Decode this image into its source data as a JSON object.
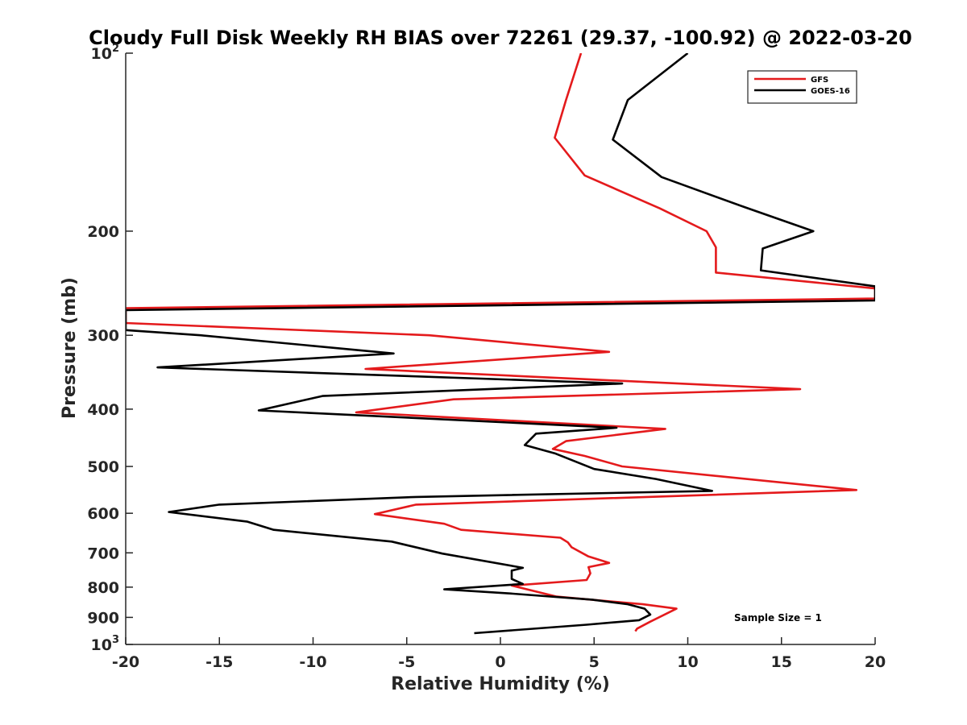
{
  "chart_data": {
    "type": "line",
    "title": "Cloudy Full Disk Weekly RH BIAS over 72261 (29.37, -100.92) @ 2022-03-20",
    "xlabel": "Relative Humidity (%)",
    "ylabel": "Pressure (mb)",
    "xlim": [
      -20,
      20
    ],
    "ylim": [
      100,
      1000
    ],
    "yscale": "log",
    "y_reversed": true,
    "grid": false,
    "legend_position": "top-right",
    "x_ticks": [
      "-20",
      "-15",
      "-10",
      "-5",
      "0",
      "5",
      "10",
      "15",
      "20"
    ],
    "y_ticks": [
      {
        "value": 100,
        "label": "10",
        "exp": "2"
      },
      {
        "value": 200,
        "label": "200"
      },
      {
        "value": 300,
        "label": "300"
      },
      {
        "value": 400,
        "label": "400"
      },
      {
        "value": 500,
        "label": "500"
      },
      {
        "value": 600,
        "label": "600"
      },
      {
        "value": 700,
        "label": "700"
      },
      {
        "value": 800,
        "label": "800"
      },
      {
        "value": 900,
        "label": "900"
      },
      {
        "value": 1000,
        "label": "10",
        "exp": "3"
      }
    ],
    "annotation": "Sample Size = 1",
    "series": [
      {
        "name": "GFS",
        "color": "#e41a1c",
        "points": [
          [
            4.3,
            100
          ],
          [
            3.5,
            120
          ],
          [
            2.9,
            139
          ],
          [
            4.5,
            161
          ],
          [
            8.5,
            183
          ],
          [
            11.0,
            200
          ],
          [
            11.5,
            213
          ],
          [
            11.5,
            235
          ],
          [
            20.0,
            250
          ],
          [
            20.0,
            260
          ],
          [
            -20.0,
            270
          ],
          [
            -20.0,
            286
          ],
          [
            -3.8,
            300
          ],
          [
            5.8,
            320
          ],
          [
            -7.2,
            342
          ],
          [
            16.0,
            370
          ],
          [
            -2.5,
            385
          ],
          [
            -7.7,
            405
          ],
          [
            8.8,
            432
          ],
          [
            3.5,
            453
          ],
          [
            2.8,
            467
          ],
          [
            4.5,
            480
          ],
          [
            6.5,
            500
          ],
          [
            19.0,
            548
          ],
          [
            -4.5,
            580
          ],
          [
            -6.7,
            602
          ],
          [
            -3.0,
            625
          ],
          [
            -2.1,
            640
          ],
          [
            3.2,
            660
          ],
          [
            3.6,
            672
          ],
          [
            3.8,
            685
          ],
          [
            4.7,
            710
          ],
          [
            5.8,
            728
          ],
          [
            4.7,
            740
          ],
          [
            4.8,
            758
          ],
          [
            4.6,
            778
          ],
          [
            0.6,
            795
          ],
          [
            3.0,
            830
          ],
          [
            7.6,
            855
          ],
          [
            9.4,
            870
          ],
          [
            8.0,
            915
          ],
          [
            7.3,
            940
          ],
          [
            7.2,
            950
          ]
        ]
      },
      {
        "name": "GOES-16",
        "color": "#000000",
        "points": [
          [
            10.0,
            100
          ],
          [
            6.8,
            120
          ],
          [
            6.0,
            140
          ],
          [
            8.6,
            162
          ],
          [
            13.0,
            182
          ],
          [
            16.7,
            200
          ],
          [
            14.0,
            214
          ],
          [
            13.9,
            233
          ],
          [
            20.0,
            248
          ],
          [
            20.0,
            262
          ],
          [
            -20.0,
            272
          ],
          [
            -20.0,
            294
          ],
          [
            -16.0,
            300
          ],
          [
            -5.7,
            322
          ],
          [
            -18.3,
            340
          ],
          [
            6.5,
            362
          ],
          [
            -9.5,
            380
          ],
          [
            -12.9,
            402
          ],
          [
            6.2,
            430
          ],
          [
            1.9,
            440
          ],
          [
            1.3,
            460
          ],
          [
            2.9,
            475
          ],
          [
            5.0,
            505
          ],
          [
            8.3,
            525
          ],
          [
            11.3,
            550
          ],
          [
            -4.5,
            563
          ],
          [
            -15.0,
            580
          ],
          [
            -17.7,
            597
          ],
          [
            -13.5,
            620
          ],
          [
            -12.1,
            640
          ],
          [
            -5.8,
            670
          ],
          [
            -4.1,
            690
          ],
          [
            -3.1,
            702
          ],
          [
            1.2,
            742
          ],
          [
            0.6,
            750
          ],
          [
            0.6,
            775
          ],
          [
            1.2,
            790
          ],
          [
            -3.0,
            807
          ],
          [
            0.5,
            820
          ],
          [
            4.9,
            840
          ],
          [
            6.8,
            855
          ],
          [
            7.7,
            870
          ],
          [
            8.0,
            890
          ],
          [
            7.4,
            910
          ],
          [
            4.6,
            926
          ],
          [
            -1.4,
            957
          ]
        ]
      }
    ]
  }
}
